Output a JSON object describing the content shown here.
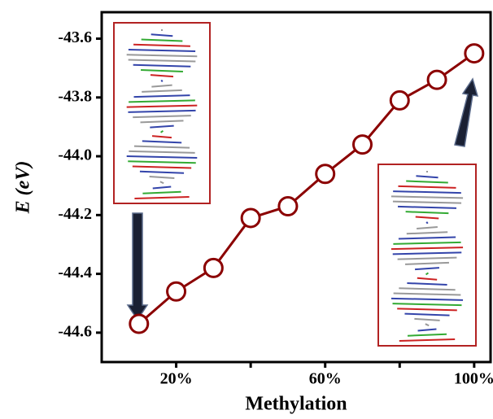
{
  "chart_data": {
    "type": "line",
    "x_label": "Methylation",
    "y_label": "E (eV)",
    "x": [
      10,
      20,
      30,
      40,
      50,
      60,
      70,
      80,
      90,
      100
    ],
    "series": [
      {
        "color": "#8b0000",
        "values": [
          -44.57,
          -44.46,
          -44.38,
          -44.21,
          -44.17,
          -44.06,
          -43.96,
          -43.81,
          -43.74,
          -43.65
        ]
      }
    ],
    "xlim": [
      0,
      104.4
    ],
    "ylim": [
      -44.7,
      -43.51
    ],
    "xticks": [
      {
        "value": 20,
        "label": "20%"
      },
      {
        "value": 60,
        "label": "60%"
      },
      {
        "value": 100,
        "label": "100%"
      }
    ],
    "xminor_ticks": [
      40,
      80
    ],
    "yticks": [
      -44.6,
      -44.4,
      -44.2,
      -44.0,
      -43.8,
      -43.6
    ],
    "ytick_labels": [
      "-44.6",
      "-44.4",
      "-44.2",
      "-44.0",
      "-43.8",
      "-43.6"
    ]
  }
}
